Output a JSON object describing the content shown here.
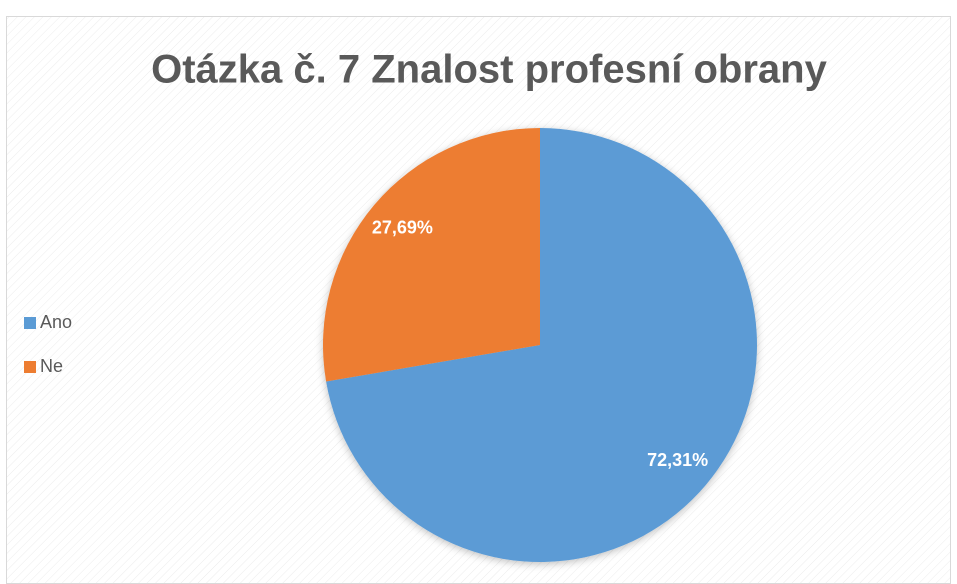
{
  "chart_data": {
    "type": "pie",
    "title": "Otázka č. 7 Znalost profesní obrany",
    "categories": [
      "Ano",
      "Ne"
    ],
    "values": [
      72.31,
      27.69
    ],
    "value_labels": [
      "72,31%",
      "27,69%"
    ],
    "colors": [
      "#5b9bd5",
      "#ed7d31"
    ],
    "legend": "left"
  }
}
